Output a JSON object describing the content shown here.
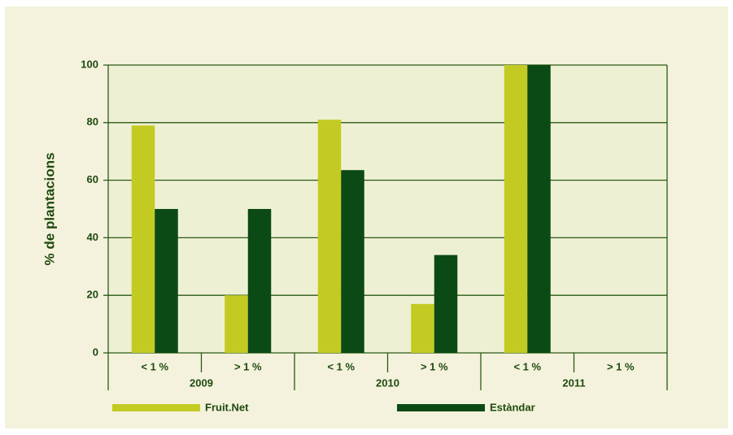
{
  "chart_data": {
    "type": "bar",
    "y_label": "% de plantacions",
    "categories": [
      "< 1 %",
      "> 1 %",
      "< 1 %",
      "> 1 %",
      "< 1 %",
      "> 1 %"
    ],
    "groups": [
      "2009",
      "2010",
      "2011"
    ],
    "series": [
      {
        "name": "Fruit.Net",
        "color": "#c3cb22",
        "values": [
          79,
          20,
          81,
          17,
          100,
          0
        ]
      },
      {
        "name": "Estàndar",
        "color": "#0b4a14",
        "values": [
          50,
          50,
          63.5,
          34,
          100,
          0
        ]
      }
    ],
    "ylim": [
      0,
      100
    ],
    "yticks": [
      0,
      20,
      40,
      60,
      80,
      100
    ],
    "grid": true,
    "legend": "bottom"
  }
}
